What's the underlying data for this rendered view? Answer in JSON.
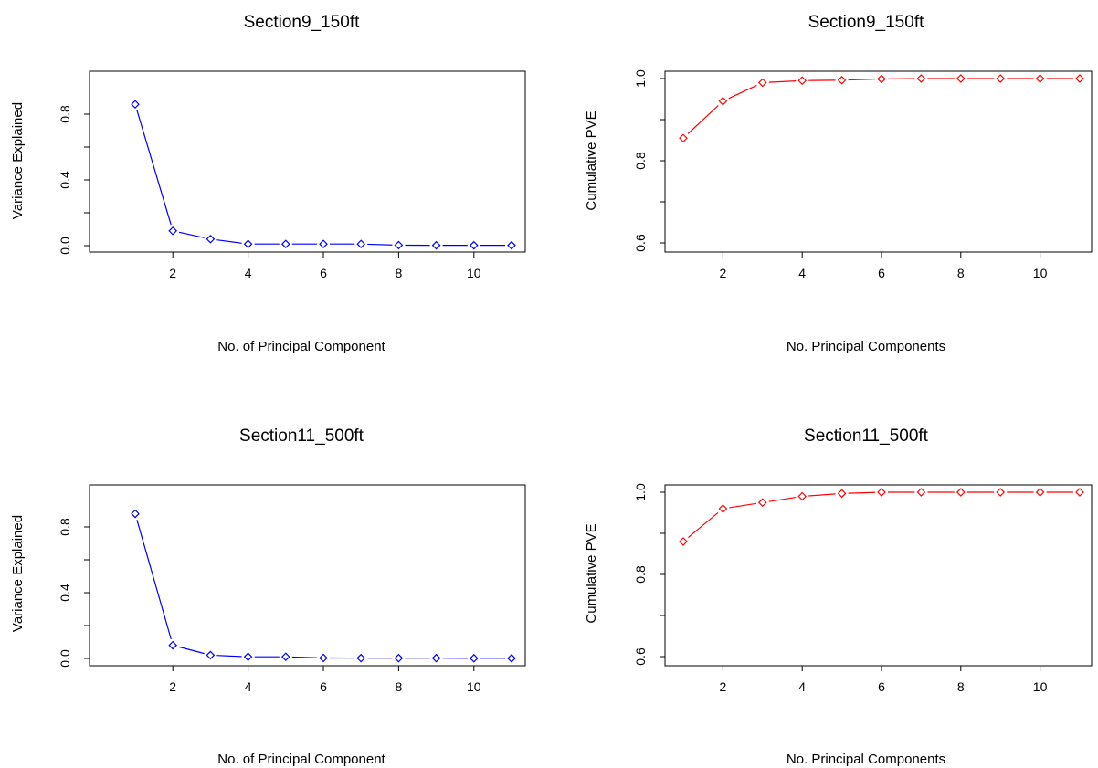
{
  "figure": {
    "colors": {
      "variance_series": "#0000ff",
      "cumulative_series": "#ff0000",
      "frame": "#000000",
      "background": "#ffffff"
    }
  },
  "chart_data": [
    {
      "type": "line",
      "title": "Section9_150ft",
      "xlabel": "No. of Principal Component",
      "ylabel": "Variance Explained",
      "x": [
        1,
        2,
        3,
        4,
        5,
        6,
        7,
        8,
        9,
        10,
        11
      ],
      "series": [
        {
          "values": [
            0.86,
            0.09,
            0.04,
            0.01,
            0.01,
            0.01,
            0.01,
            0.003,
            0.002,
            0.002,
            0.002
          ]
        }
      ],
      "xlim": [
        1,
        11
      ],
      "ylim": [
        0,
        1
      ],
      "xticks": [
        2,
        4,
        6,
        8,
        10
      ],
      "xtick_labels": [
        "2",
        "4",
        "6",
        "8",
        "10"
      ],
      "yticks": [
        0,
        0.4,
        0.8
      ],
      "ytick_labels": [
        "0.0",
        "0.4",
        "0.8"
      ],
      "minor_yticks": [
        0.2,
        0.6
      ],
      "marker": "open-diamond",
      "color": "#0000ff",
      "grid": false
    },
    {
      "type": "line",
      "title": "Section9_150ft",
      "xlabel": "No. Principal Components",
      "ylabel": "Cumulative PVE",
      "x": [
        1,
        2,
        3,
        4,
        5,
        6,
        7,
        8,
        9,
        10,
        11
      ],
      "series": [
        {
          "values": [
            0.855,
            0.945,
            0.99,
            0.995,
            0.996,
            0.999,
            1.0,
            1.0,
            1.0,
            1.0,
            1.0
          ]
        }
      ],
      "xlim": [
        1,
        11
      ],
      "ylim": [
        0.6,
        1.0
      ],
      "xticks": [
        2,
        4,
        6,
        8,
        10
      ],
      "xtick_labels": [
        "2",
        "4",
        "6",
        "8",
        "10"
      ],
      "yticks": [
        0.6,
        0.8,
        1.0
      ],
      "ytick_labels": [
        "0.6",
        "0.8",
        "1.0"
      ],
      "minor_yticks": [
        0.7,
        0.9
      ],
      "marker": "open-diamond",
      "color": "#ff0000",
      "grid": false
    },
    {
      "type": "line",
      "title": "Section11_500ft",
      "xlabel": "No. of Principal Component",
      "ylabel": "Variance Explained",
      "x": [
        1,
        2,
        3,
        4,
        5,
        6,
        7,
        8,
        9,
        10,
        11
      ],
      "series": [
        {
          "values": [
            0.88,
            0.08,
            0.02,
            0.01,
            0.01,
            0.003,
            0.002,
            0.002,
            0.002,
            0.001,
            0.001
          ]
        }
      ],
      "xlim": [
        1,
        11
      ],
      "ylim": [
        0,
        1
      ],
      "xticks": [
        2,
        4,
        6,
        8,
        10
      ],
      "xtick_labels": [
        "2",
        "4",
        "6",
        "8",
        "10"
      ],
      "yticks": [
        0,
        0.4,
        0.8
      ],
      "ytick_labels": [
        "0.0",
        "0.4",
        "0.8"
      ],
      "minor_yticks": [
        0.2,
        0.6
      ],
      "marker": "open-diamond",
      "color": "#0000ff",
      "grid": false
    },
    {
      "type": "line",
      "title": "Section11_500ft",
      "xlabel": "No. Principal Components",
      "ylabel": "Cumulative PVE",
      "x": [
        1,
        2,
        3,
        4,
        5,
        6,
        7,
        8,
        9,
        10,
        11
      ],
      "series": [
        {
          "values": [
            0.88,
            0.96,
            0.975,
            0.99,
            0.997,
            1.0,
            1.0,
            1.0,
            1.0,
            1.0,
            1.0
          ]
        }
      ],
      "xlim": [
        1,
        11
      ],
      "ylim": [
        0.6,
        1.0
      ],
      "xticks": [
        2,
        4,
        6,
        8,
        10
      ],
      "xtick_labels": [
        "2",
        "4",
        "6",
        "8",
        "10"
      ],
      "yticks": [
        0.6,
        0.8,
        1.0
      ],
      "ytick_labels": [
        "0.6",
        "0.8",
        "1.0"
      ],
      "minor_yticks": [
        0.7,
        0.9
      ],
      "marker": "open-diamond",
      "color": "#ff0000",
      "grid": false
    }
  ]
}
